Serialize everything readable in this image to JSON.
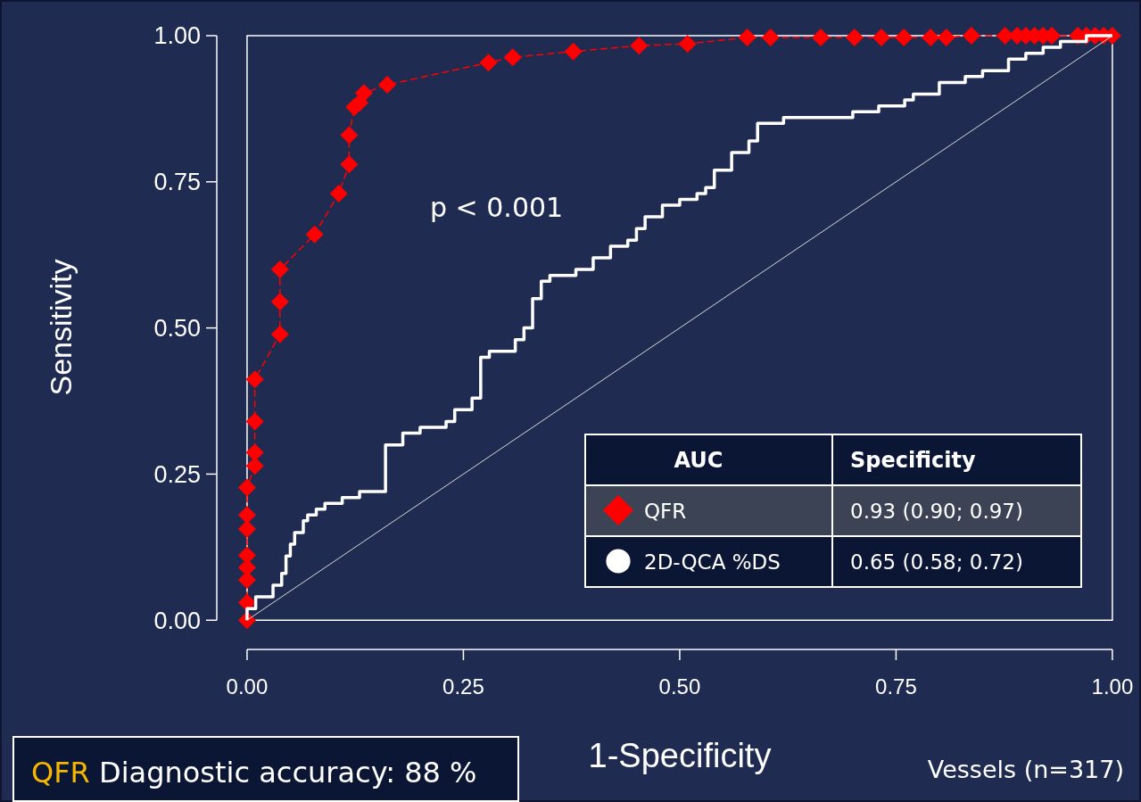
{
  "chart_data": {
    "type": "line",
    "xlabel": "1-Specificity",
    "ylabel": "Sensitivity",
    "xlim": [
      -0.035,
      1.03
    ],
    "ylim": [
      -0.05,
      1
    ],
    "xticks": [
      {
        "value": 0,
        "label": "0.00"
      },
      {
        "value": 0.25,
        "label": "0.25"
      },
      {
        "value": 0.5,
        "label": "0.50"
      },
      {
        "value": 0.75,
        "label": "0.75"
      },
      {
        "value": 1,
        "label": "1.00"
      }
    ],
    "yticks": [
      {
        "value": 0,
        "label": "0.00"
      },
      {
        "value": 0.25,
        "label": "0.25"
      },
      {
        "value": 0.5,
        "label": "0.50"
      },
      {
        "value": 0.75,
        "label": "0.75"
      },
      {
        "value": 1,
        "label": "1.00"
      }
    ],
    "grid": false,
    "legend": "bottom right",
    "legend_title": "AUC",
    "series": [
      {
        "type": "line",
        "color": "#d9d9d9",
        "line_style": "solid",
        "marker": "none",
        "x": [
          0,
          1
        ],
        "values": [
          0,
          1
        ]
      },
      {
        "name": "2D-QCA %DS",
        "type": "step",
        "color": "#ffffff",
        "line_style": "solid",
        "marker": "none",
        "x": [
          0,
          0,
          0.01,
          0.03,
          0.04,
          0.045,
          0.05,
          0.055,
          0.065,
          0.07,
          0.08,
          0.09,
          0.11,
          0.13,
          0.16,
          0.16,
          0.18,
          0.2,
          0.23,
          0.24,
          0.26,
          0.27,
          0.28,
          0.3,
          0.31,
          0.32,
          0.33,
          0.34,
          0.35,
          0.38,
          0.4,
          0.42,
          0.44,
          0.45,
          0.46,
          0.48,
          0.5,
          0.52,
          0.53,
          0.54,
          0.56,
          0.58,
          0.59,
          0.62,
          0.65,
          0.7,
          0.73,
          0.76,
          0.77,
          0.8,
          0.83,
          0.85,
          0.88,
          0.9,
          0.92,
          0.94,
          0.97,
          1
        ],
        "values": [
          0,
          0.02,
          0.04,
          0.06,
          0.08,
          0.11,
          0.13,
          0.15,
          0.17,
          0.18,
          0.19,
          0.2,
          0.21,
          0.22,
          0.22,
          0.3,
          0.32,
          0.33,
          0.34,
          0.36,
          0.38,
          0.45,
          0.46,
          0.46,
          0.48,
          0.5,
          0.55,
          0.58,
          0.59,
          0.6,
          0.62,
          0.64,
          0.65,
          0.67,
          0.69,
          0.71,
          0.72,
          0.73,
          0.74,
          0.77,
          0.8,
          0.82,
          0.85,
          0.86,
          0.86,
          0.87,
          0.88,
          0.89,
          0.9,
          0.92,
          0.93,
          0.94,
          0.96,
          0.97,
          0.98,
          0.99,
          1,
          1
        ]
      },
      {
        "name": "QFR",
        "type": "line",
        "color": "#ff0000",
        "line_style": "dashed",
        "marker": "diamond",
        "x": [
          0,
          0,
          0,
          0,
          0,
          0,
          0,
          0,
          0.009,
          0.009,
          0.009,
          0.009,
          0.038,
          0.038,
          0.038,
          0.078,
          0.106,
          0.118,
          0.118,
          0.124,
          0.13,
          0.135,
          0.162,
          0.279,
          0.307,
          0.377,
          0.453,
          0.509,
          0.578,
          0.605,
          0.663,
          0.702,
          0.733,
          0.759,
          0.79,
          0.808,
          0.837,
          0.876,
          0.89,
          0.9,
          0.91,
          0.92,
          0.93,
          0.96,
          0.97,
          0.98,
          0.99,
          1
        ],
        "values": [
          0,
          0.03,
          0.069,
          0.09,
          0.111,
          0.156,
          0.18,
          0.227,
          0.264,
          0.287,
          0.34,
          0.412,
          0.489,
          0.545,
          0.6,
          0.66,
          0.73,
          0.78,
          0.83,
          0.878,
          0.885,
          0.902,
          0.916,
          0.954,
          0.963,
          0.973,
          0.983,
          0.986,
          0.997,
          0.997,
          0.997,
          0.997,
          0.997,
          0.997,
          0.997,
          0.997,
          1,
          1,
          1,
          1,
          1,
          1,
          1,
          1,
          1,
          1,
          1,
          1
        ]
      }
    ],
    "annotations": [
      "Specificity",
      "0.65 (0.58; 0.72)",
      "0.93 (0.90; 0.97)",
      "p < 0.001",
      "QFR Diagnostic accuracy: 88 %",
      "Vessels (n=317)"
    ]
  }
}
